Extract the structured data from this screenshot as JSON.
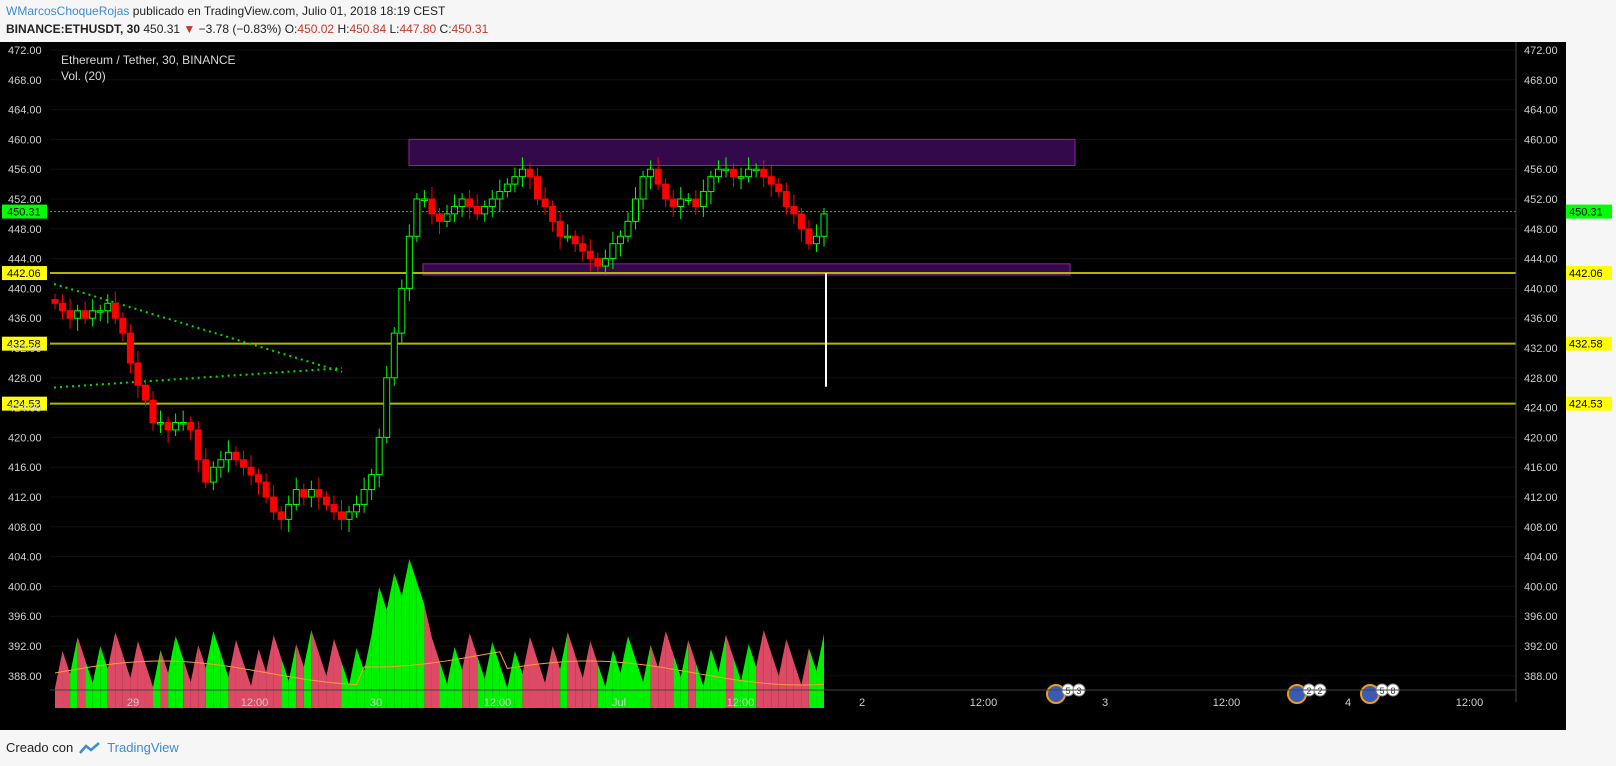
{
  "header": {
    "author": "WMarcosChoqueRojas",
    "published": "publicado en TradingView.com, Julio 01, 2018 18:19 CEST",
    "symbol": "BINANCE:ETHUSDT, 30",
    "last": "450.31",
    "change": "−3.78 (−0.83%)",
    "o_label": "O:",
    "o": "450.02",
    "h_label": "H:",
    "h": "450.84",
    "l_label": "L:",
    "l": "447.80",
    "c_label": "C:",
    "c": "450.31"
  },
  "legend": {
    "title": "Ethereum / Tether, 30, BINANCE",
    "volume": "Vol. (20)"
  },
  "footer": {
    "created_with": "Creado con",
    "brand": "TradingView"
  },
  "colors": {
    "bg": "#000000",
    "up": "#00ff00",
    "down": "#ff0000",
    "vol_up": "#00ff00",
    "vol_down": "#e94e6a",
    "level": "#b5b500",
    "zone": "#7b1fa2",
    "price_tag": "#00ff00",
    "level_tag": "#ffff00",
    "ma": "#ff9a3c"
  },
  "chart_data": {
    "type": "candlestick",
    "title": "Ethereum / Tether, 30, BINANCE",
    "ylim": [
      386,
      473
    ],
    "y_ticks": [
      "472.00",
      "468.00",
      "464.00",
      "460.00",
      "456.00",
      "452.00",
      "448.00",
      "444.00",
      "440.00",
      "436.00",
      "432.00",
      "428.00",
      "424.00",
      "420.00",
      "416.00",
      "412.00",
      "408.00",
      "404.00",
      "400.00",
      "396.00",
      "392.00",
      "388.00"
    ],
    "x_ticks": [
      "29",
      "12:00",
      "30",
      "12:00",
      "Jul",
      "12:00",
      "2",
      "12:00",
      "3",
      "12:00",
      "4",
      "12:00"
    ],
    "last_price": "450.31",
    "horizontal_levels": [
      "442.06",
      "432.58",
      "424.53"
    ],
    "zones": [
      {
        "from": 456.5,
        "to": 460.0
      },
      {
        "from": 441.8,
        "to": 443.3
      }
    ],
    "ohlc_close_series": [
      438,
      437,
      436,
      437,
      436,
      437,
      437,
      438,
      436,
      434,
      430,
      427,
      425,
      422,
      422,
      421,
      422,
      422,
      421,
      417,
      414,
      416,
      417,
      418,
      417,
      416,
      415,
      414,
      412,
      410,
      409,
      411,
      413,
      412,
      413,
      412,
      411,
      410,
      409,
      410,
      411,
      413,
      415,
      420,
      428,
      434,
      440,
      447,
      452,
      452,
      450,
      449,
      450,
      451,
      452,
      451,
      450,
      451,
      452,
      453,
      454,
      455,
      456,
      455,
      452,
      451,
      449,
      447,
      447,
      446,
      445,
      444,
      443,
      444,
      446,
      447,
      449,
      452,
      455,
      456,
      454,
      452,
      451,
      452,
      452,
      451,
      453,
      455,
      456,
      456,
      455,
      455,
      456,
      456,
      455,
      454,
      453,
      451,
      450,
      448,
      446,
      447,
      450
    ]
  },
  "events": [
    {
      "badges": [
        "5",
        "3"
      ]
    },
    {
      "badges": [
        "2",
        "2"
      ]
    },
    {
      "badges": [
        "5",
        "8"
      ]
    }
  ]
}
